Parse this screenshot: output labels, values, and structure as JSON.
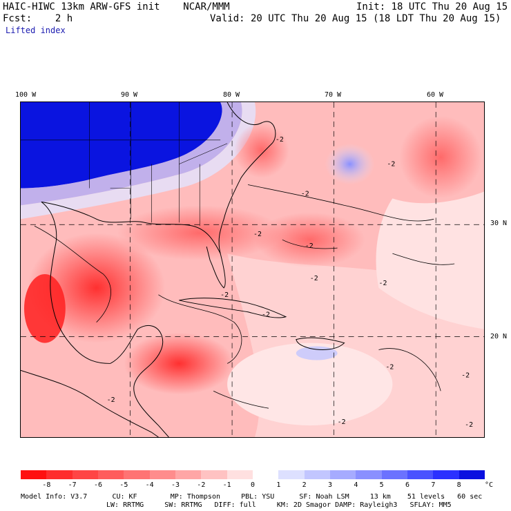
{
  "header": {
    "model_line": "HAIC-HIWC 13km ARW-GFS init    NCAR/MMM",
    "fcst_line": "Fcst:    2 h",
    "init_line": "Init: 18 UTC Thu 20 Aug 15",
    "valid_line": "Valid: 20 UTC Thu 20 Aug 15 (18 LDT Thu 20 Aug 15)",
    "field": "Lifted index"
  },
  "map": {
    "lon_labels": [
      "100 W",
      "90 W",
      "80 W",
      "70 W",
      "60 W"
    ],
    "lat_labels": [
      "30 N",
      "20 N"
    ],
    "contour_labels": [
      "-2",
      "-2",
      "-2",
      "-2",
      "-2",
      "-2",
      "-2",
      "-2",
      "-2",
      "-2",
      "-2",
      "-2",
      "-2",
      "-2"
    ]
  },
  "colorbar": {
    "ticks": [
      "-8",
      "-7",
      "-6",
      "-5",
      "-4",
      "-3",
      "-2",
      "-1",
      "0",
      "1",
      "2",
      "3",
      "4",
      "5",
      "6",
      "7",
      "8"
    ],
    "unit": "°C",
    "colors": [
      "#ff1010",
      "#ff2d2d",
      "#ff4545",
      "#ff5c5c",
      "#ff7373",
      "#ff8c8c",
      "#ffa6a6",
      "#ffc2c2",
      "#ffe0e0",
      "#ffffff",
      "#dde0ff",
      "#c2c6ff",
      "#a6abff",
      "#8a90ff",
      "#6b72ff",
      "#4a52ff",
      "#2a30ff",
      "#0a10e0"
    ]
  },
  "footer": {
    "line1": "Model Info: V3.7      CU: KF        MP: Thompson     PBL: YSU      SF: Noah LSM     13 km    51 levels   60 sec",
    "line2": "LW: RRTMG     SW: RRTMG   DIFF: full     KM: 2D Smagor DAMP: Rayleigh3   SFLAY: MM5"
  }
}
